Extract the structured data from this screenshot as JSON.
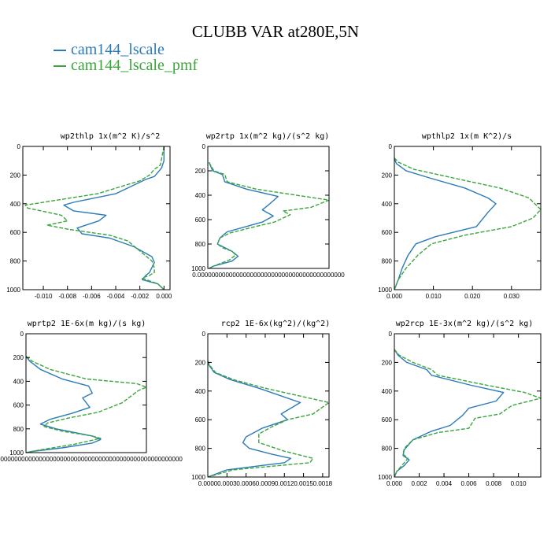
{
  "title": "CLUBB VAR at280E,5N",
  "legend": [
    {
      "label": "cam144_lscale",
      "color": "#2b7bba"
    },
    {
      "label": "cam144_lscale_pmf",
      "color": "#3aa63a"
    }
  ],
  "chart_data": [
    {
      "type": "line",
      "title": "wp2thlp  1x(m^2 K)/s^2",
      "xlim": [
        -0.0117,
        0.0005
      ],
      "ylim": [
        1000,
        0
      ],
      "xticks": [
        "-0.010",
        "-0.008",
        "-0.006",
        "-0.004",
        "-0.002",
        "0.000"
      ],
      "xtick_values": [
        -0.01,
        -0.008,
        -0.006,
        -0.004,
        -0.002,
        0.0
      ],
      "yticks": [
        "0",
        "200",
        "400",
        "600",
        "800",
        "1000"
      ],
      "series": [
        {
          "name": "cam144_lscale",
          "x": [
            0,
            0,
            -0.0002,
            -0.0005,
            -0.0008,
            -0.0015,
            -0.004,
            -0.0075,
            -0.0083,
            -0.0075,
            -0.0048,
            -0.0054,
            -0.0072,
            -0.0068,
            -0.0045,
            -0.0025,
            -0.001,
            -0.0008,
            -0.0012,
            -0.0015,
            -0.0018,
            -0.0005,
            0
          ],
          "y": [
            0,
            100,
            150,
            180,
            210,
            230,
            330,
            390,
            410,
            450,
            480,
            520,
            570,
            610,
            640,
            700,
            770,
            810,
            880,
            900,
            930,
            960,
            1000
          ]
        },
        {
          "name": "cam144_lscale_pmf",
          "x": [
            0,
            -0.0003,
            -0.0008,
            -0.0012,
            -0.002,
            -0.0055,
            -0.0115,
            -0.0113,
            -0.0085,
            -0.008,
            -0.0097,
            -0.0078,
            -0.0045,
            -0.003,
            -0.002,
            -0.001,
            -0.0008,
            -0.0008,
            -0.0012,
            -0.0018,
            -0.0005,
            0
          ],
          "y": [
            0,
            130,
            160,
            200,
            240,
            330,
            410,
            430,
            480,
            520,
            550,
            580,
            620,
            660,
            730,
            800,
            850,
            880,
            900,
            920,
            960,
            1000
          ]
        }
      ]
    },
    {
      "type": "line",
      "title": "wp2rtp  1x(m^2 kg)/(s^2 kg)",
      "xlim": [
        0,
        1
      ],
      "ylim": [
        1000,
        0
      ],
      "xticks": [
        "0.000000000000000000000000000000000000000000"
      ],
      "xtick_values": [
        0.5
      ],
      "yticks": [
        "0",
        "200",
        "400",
        "600",
        "800",
        "1000"
      ],
      "series": [
        {
          "name": "cam144_lscale",
          "x": [
            0.01,
            0.04,
            0.12,
            0.14,
            0.32,
            0.58,
            0.5,
            0.45,
            0.54,
            0.45,
            0.34,
            0.16,
            0.1,
            0.08,
            0.12,
            0.2,
            0.25,
            0.2,
            0.05,
            0.01
          ],
          "y": [
            130,
            200,
            230,
            290,
            350,
            410,
            480,
            520,
            570,
            620,
            650,
            700,
            750,
            800,
            820,
            860,
            900,
            940,
            980,
            1000
          ]
        },
        {
          "name": "cam144_lscale_pmf",
          "x": [
            0.01,
            0.05,
            0.14,
            0.16,
            0.4,
            1.0,
            0.85,
            0.62,
            0.68,
            0.55,
            0.38,
            0.18,
            0.1,
            0.08,
            0.12,
            0.2,
            0.23,
            0.18,
            0.05,
            0.01
          ],
          "y": [
            130,
            200,
            230,
            290,
            350,
            440,
            500,
            530,
            560,
            620,
            660,
            710,
            750,
            800,
            830,
            860,
            890,
            930,
            980,
            1000
          ]
        }
      ]
    },
    {
      "type": "line",
      "title": "wpthlp2  1x(m K^2)/s",
      "xlim": [
        0,
        0.0375
      ],
      "ylim": [
        1000,
        0
      ],
      "xticks": [
        "0.000",
        "0.010",
        "0.020",
        "0.030"
      ],
      "xtick_values": [
        0,
        0.01,
        0.02,
        0.03
      ],
      "yticks": [
        "0",
        "200",
        "400",
        "600",
        "800",
        "1000"
      ],
      "series": [
        {
          "name": "cam144_lscale",
          "x": [
            0,
            0.0005,
            0.003,
            0.009,
            0.018,
            0.024,
            0.026,
            0.024,
            0.021,
            0.0105,
            0.0055,
            0.0035,
            0.002,
            0.001,
            0
          ],
          "y": [
            80,
            120,
            170,
            220,
            290,
            360,
            400,
            460,
            560,
            630,
            680,
            760,
            850,
            930,
            1000
          ]
        },
        {
          "name": "cam144_lscale_pmf",
          "x": [
            0,
            0.001,
            0.005,
            0.015,
            0.027,
            0.0345,
            0.0375,
            0.0355,
            0.03,
            0.018,
            0.0095,
            0.006,
            0.003,
            0.001,
            0
          ],
          "y": [
            80,
            110,
            160,
            220,
            290,
            360,
            440,
            500,
            560,
            620,
            680,
            760,
            850,
            930,
            1000
          ]
        }
      ]
    },
    {
      "type": "line",
      "title": "wprtp2  1E-6x(m kg)/(s kg)",
      "xlim": [
        0,
        1
      ],
      "ylim": [
        1000,
        0
      ],
      "xticks": [
        "0000000000000000000000000000000000000000000000000000000"
      ],
      "xtick_values": [
        0.5
      ],
      "yticks": [
        "0",
        "200",
        "400",
        "600",
        "800",
        "1000"
      ],
      "series": [
        {
          "name": "cam144_lscale",
          "x": [
            0,
            0.03,
            0.12,
            0.3,
            0.52,
            0.55,
            0.47,
            0.53,
            0.38,
            0.2,
            0.12,
            0.25,
            0.55,
            0.62,
            0.55,
            0.3,
            0.05,
            0
          ],
          "y": [
            190,
            230,
            300,
            380,
            440,
            500,
            540,
            620,
            670,
            720,
            760,
            800,
            860,
            890,
            920,
            960,
            990,
            1000
          ]
        },
        {
          "name": "cam144_lscale_pmf",
          "x": [
            0,
            0.05,
            0.2,
            0.5,
            0.92,
            1.0,
            0.93,
            0.8,
            0.6,
            0.35,
            0.18,
            0.15,
            0.3,
            0.55,
            0.62,
            0.4,
            0.1,
            0
          ],
          "y": [
            190,
            230,
            300,
            380,
            420,
            450,
            480,
            580,
            660,
            710,
            750,
            780,
            820,
            860,
            880,
            930,
            980,
            1000
          ]
        }
      ]
    },
    {
      "type": "line",
      "title": "rcp2  1E-6x(kg^2)/(kg^2)",
      "xlim": [
        0,
        0.0019
      ],
      "ylim": [
        1000,
        0
      ],
      "xticks": [
        "0.0000",
        "0.0003",
        "0.0006",
        "0.0009",
        "0.0012",
        "0.0015",
        "0.0018"
      ],
      "xtick_values": [
        0,
        0.0003,
        0.0006,
        0.0009,
        0.0012,
        0.0015,
        0.0018
      ],
      "yticks": [
        "0",
        "200",
        "400",
        "600",
        "800",
        "1000"
      ],
      "series": [
        {
          "name": "cam144_lscale",
          "x": [
            0,
            2e-05,
            0.0001,
            0.00035,
            0.0008,
            0.00145,
            0.00115,
            0.00125,
            0.00085,
            0.0006,
            0.00055,
            0.00065,
            0.001,
            0.0013,
            0.0012,
            0.0003,
            0
          ],
          "y": [
            190,
            220,
            270,
            320,
            380,
            480,
            560,
            600,
            660,
            720,
            760,
            800,
            840,
            870,
            900,
            950,
            1000
          ]
        },
        {
          "name": "cam144_lscale_pmf",
          "x": [
            0,
            3e-05,
            0.00012,
            0.0004,
            0.0009,
            0.0019,
            0.00165,
            0.00125,
            0.001,
            0.0008,
            0.0008,
            0.0012,
            0.00165,
            0.0016,
            0.0004,
            0
          ],
          "y": [
            190,
            220,
            270,
            320,
            380,
            480,
            560,
            600,
            650,
            700,
            760,
            820,
            870,
            900,
            950,
            1000
          ]
        }
      ]
    },
    {
      "type": "line",
      "title": "wp2rcp  1E-3x(m^2 kg)/(s^2 kg)",
      "xlim": [
        0,
        0.0118
      ],
      "ylim": [
        1000,
        0
      ],
      "xticks": [
        "0.000",
        "0.002",
        "0.004",
        "0.006",
        "0.008",
        "0.010"
      ],
      "xtick_values": [
        0,
        0.002,
        0.004,
        0.006,
        0.008,
        0.01
      ],
      "yticks": [
        "0",
        "200",
        "400",
        "600",
        "800",
        "1000"
      ],
      "series": [
        {
          "name": "cam144_lscale",
          "x": [
            0,
            0.0003,
            0.001,
            0.0026,
            0.003,
            0.0062,
            0.0088,
            0.0082,
            0.006,
            0.0055,
            0.0045,
            0.003,
            0.0015,
            0.0008,
            0.0007,
            0.0012,
            0.0008,
            0.0002,
            0
          ],
          "y": [
            110,
            150,
            200,
            250,
            290,
            360,
            410,
            470,
            520,
            570,
            640,
            680,
            740,
            810,
            850,
            880,
            920,
            960,
            1000
          ]
        },
        {
          "name": "cam144_lscale_pmf",
          "x": [
            0,
            0.0004,
            0.0015,
            0.003,
            0.0035,
            0.0075,
            0.0105,
            0.0118,
            0.0095,
            0.0085,
            0.0065,
            0.006,
            0.0035,
            0.0015,
            0.0008,
            0.0007,
            0.0011,
            0.0006,
            0.0002,
            0
          ],
          "y": [
            110,
            150,
            200,
            250,
            290,
            360,
            410,
            450,
            500,
            560,
            590,
            660,
            690,
            740,
            800,
            840,
            870,
            920,
            960,
            1000
          ]
        }
      ]
    }
  ]
}
